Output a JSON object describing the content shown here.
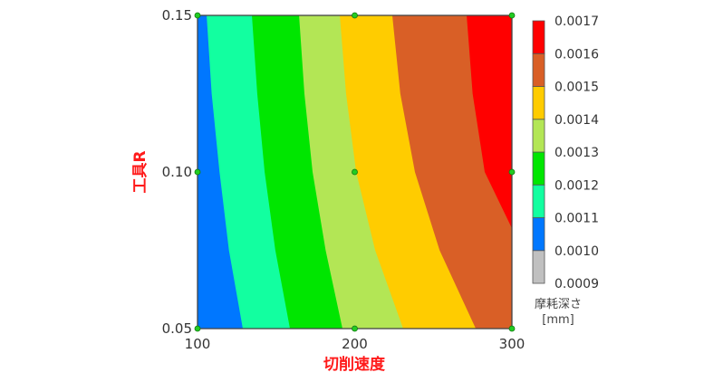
{
  "chart_data": {
    "type": "contour",
    "xlabel": "切削速度",
    "ylabel": "工具R",
    "xlim": [
      100,
      300
    ],
    "ylim": [
      0.05,
      0.15
    ],
    "xticks": [
      "100",
      "200",
      "300"
    ],
    "yticks": [
      "0.05",
      "0.10",
      "0.15"
    ],
    "xtick_values": [
      100,
      200,
      300
    ],
    "ytick_values": [
      0.05,
      0.1,
      0.15
    ],
    "design_points": [
      [
        100,
        0.05
      ],
      [
        200,
        0.05
      ],
      [
        300,
        0.05
      ],
      [
        100,
        0.1
      ],
      [
        200,
        0.1
      ],
      [
        300,
        0.1
      ],
      [
        100,
        0.15
      ],
      [
        200,
        0.15
      ],
      [
        300,
        0.15
      ]
    ],
    "levels": [
      0.0009,
      0.001,
      0.0011,
      0.0012,
      0.0013,
      0.0014,
      0.0015,
      0.0016,
      0.0017
    ],
    "level_labels": [
      "0.0009",
      "0.0010",
      "0.0011",
      "0.0012",
      "0.0013",
      "0.0014",
      "0.0015",
      "0.0016",
      "0.0017"
    ],
    "band_colors": [
      "#c0c0c0",
      "#0077ff",
      "#12ffa0",
      "#00e600",
      "#b3e655",
      "#ffcc00",
      "#d95f26",
      "#ff0000"
    ],
    "contours": [
      {
        "level": 0.0011,
        "points": [
          [
            105.8,
            0.15
          ],
          [
            109,
            0.125
          ],
          [
            114,
            0.1
          ],
          [
            120,
            0.075
          ],
          [
            128.8,
            0.05
          ]
        ]
      },
      {
        "level": 0.0012,
        "points": [
          [
            134.6,
            0.15
          ],
          [
            138,
            0.125
          ],
          [
            142.7,
            0.1
          ],
          [
            149.5,
            0.075
          ],
          [
            158.8,
            0.05
          ]
        ]
      },
      {
        "level": 0.0013,
        "points": [
          [
            164.6,
            0.15
          ],
          [
            168,
            0.125
          ],
          [
            173.2,
            0.1
          ],
          [
            181.5,
            0.075
          ],
          [
            192.2,
            0.05
          ]
        ]
      },
      {
        "level": 0.0014,
        "points": [
          [
            190.5,
            0.15
          ],
          [
            194.5,
            0.125
          ],
          [
            200.9,
            0.1
          ],
          [
            213,
            0.075
          ],
          [
            230.8,
            0.05
          ]
        ]
      },
      {
        "level": 0.0015,
        "points": [
          [
            223.9,
            0.15
          ],
          [
            229,
            0.125
          ],
          [
            238.3,
            0.1
          ],
          [
            254,
            0.075
          ],
          [
            277,
            0.05
          ]
        ]
      },
      {
        "level": 0.0016,
        "points": [
          [
            271.2,
            0.15
          ],
          [
            275,
            0.125
          ],
          [
            282.7,
            0.1
          ],
          [
            300,
            0.082
          ],
          [
            300,
            0.05
          ]
        ]
      }
    ],
    "colorbar_title": "摩耗深さ",
    "colorbar_unit": "[mm]"
  }
}
